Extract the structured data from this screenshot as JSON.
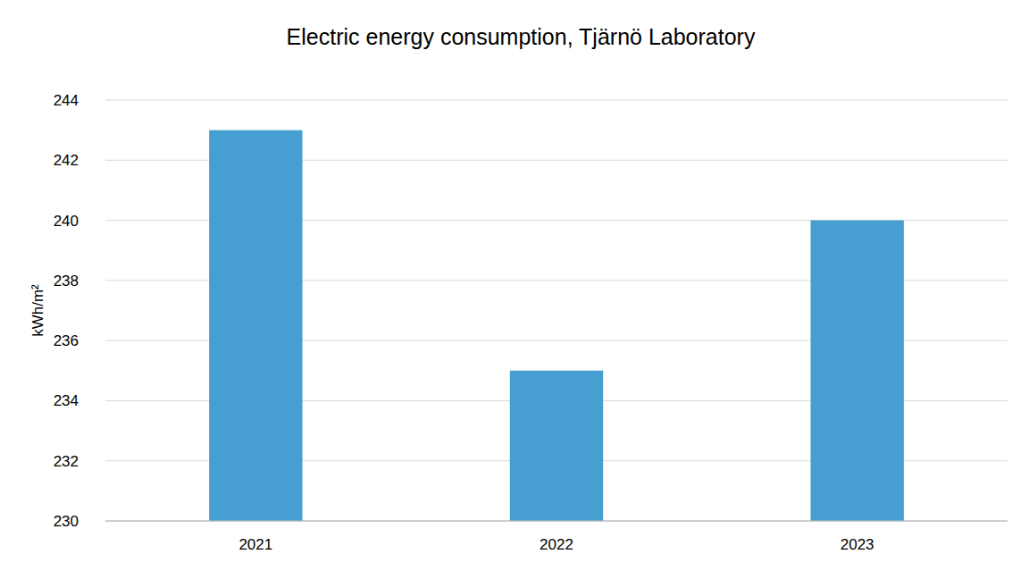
{
  "chart_data": {
    "type": "bar",
    "title": "Electric energy consumption, Tjärnö Laboratory",
    "y_label": "kWh/m²",
    "categories": [
      "2021",
      "2022",
      "2023"
    ],
    "values": [
      243,
      235,
      240
    ],
    "color": "#479fd1",
    "ylim": [
      230,
      244
    ],
    "yticks": [
      230,
      232,
      234,
      236,
      238,
      240,
      242,
      244
    ],
    "grid": true
  }
}
